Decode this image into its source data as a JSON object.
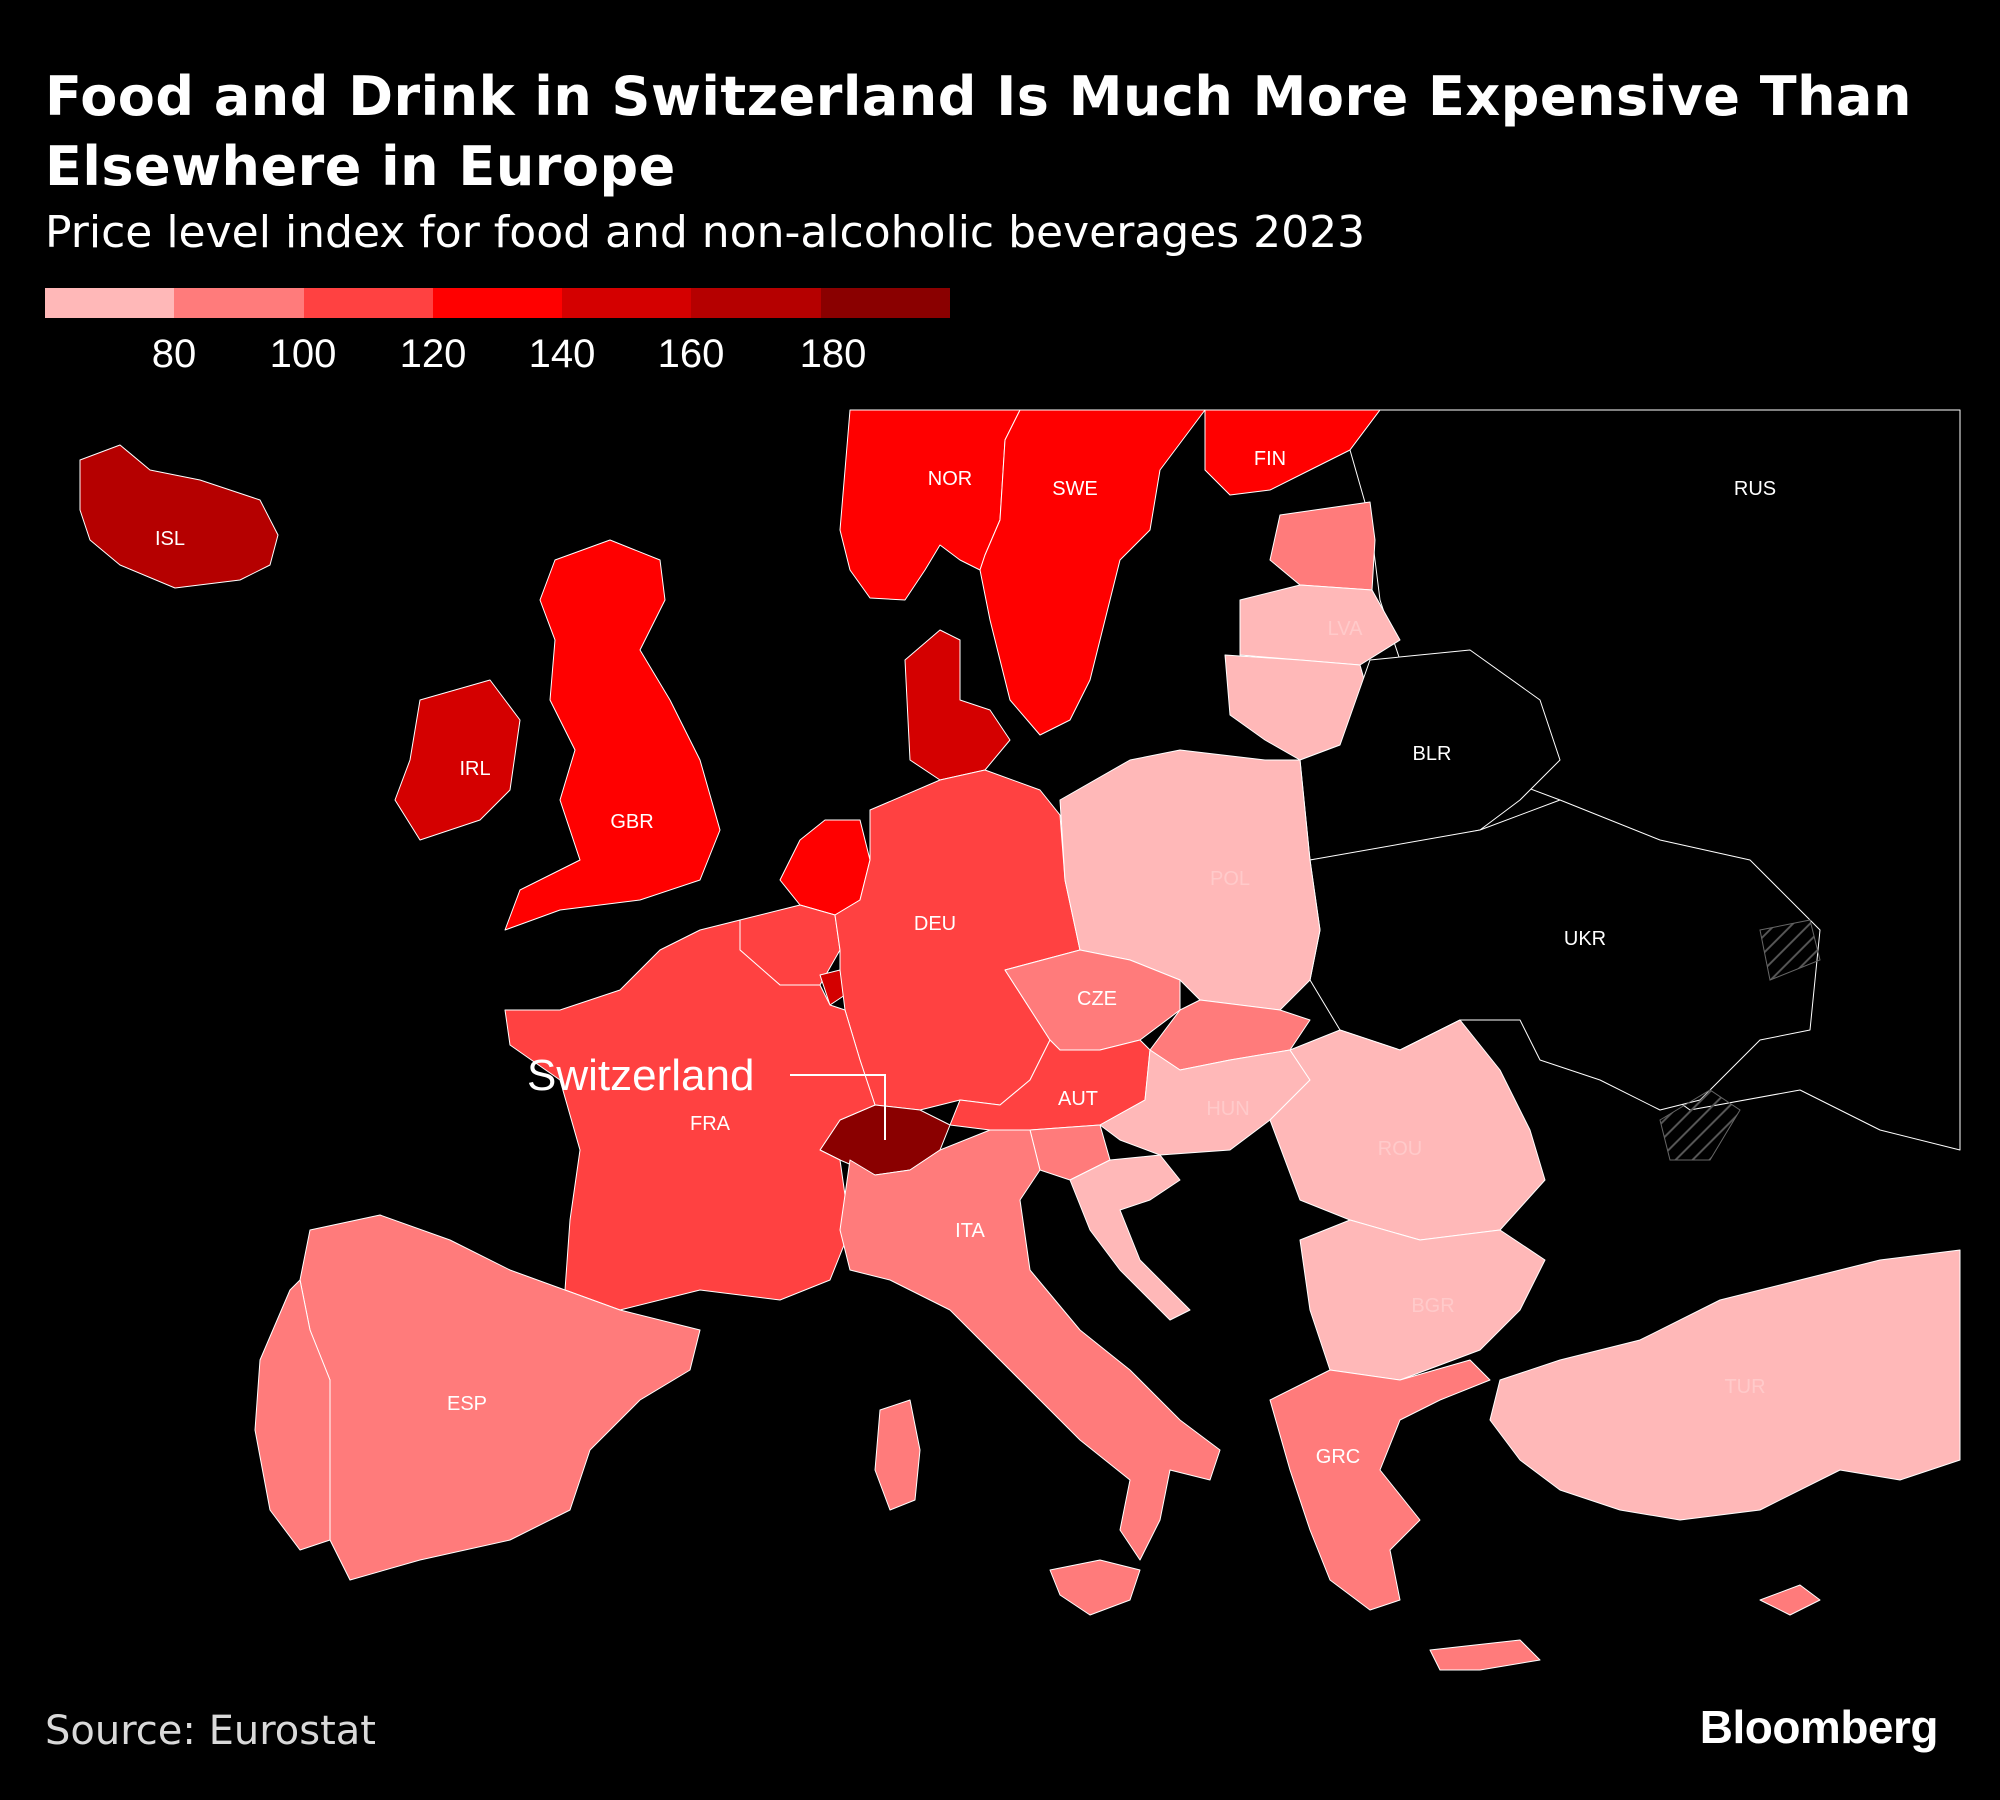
{
  "header": {
    "title": "Food and Drink in Switzerland Is Much More Expensive Than Elsewhere in Europe",
    "subtitle": "Price level index for food and non-alcoholic beverages 2023"
  },
  "legend": {
    "colors": [
      "#ffb8b8",
      "#ff7b7b",
      "#ff4141",
      "#ff0000",
      "#d40000",
      "#b50000",
      "#8a0000"
    ],
    "ticks": [
      "80",
      "100",
      "120",
      "140",
      "160",
      "180"
    ]
  },
  "annotation": {
    "label": "Switzerland"
  },
  "map": {
    "colors": {
      "no_data": "#000000",
      "border": "#ffffff"
    },
    "countries": [
      {
        "code": "ISL",
        "label": "ISL",
        "color": "#b50000"
      },
      {
        "code": "NOR",
        "label": "NOR",
        "color": "#ff0000"
      },
      {
        "code": "SWE",
        "label": "SWE",
        "color": "#ff0000"
      },
      {
        "code": "FIN",
        "label": "FIN",
        "color": "#ff0000"
      },
      {
        "code": "RUS",
        "label": "RUS",
        "color": "#000000"
      },
      {
        "code": "EST",
        "label": "",
        "color": "#ff7b7b"
      },
      {
        "code": "LVA",
        "label": "LVA",
        "color": "#ffb8b8"
      },
      {
        "code": "LTU",
        "label": "",
        "color": "#ffb8b8"
      },
      {
        "code": "BLR",
        "label": "BLR",
        "color": "#000000"
      },
      {
        "code": "IRL",
        "label": "IRL",
        "color": "#d40000"
      },
      {
        "code": "GBR",
        "label": "GBR",
        "color": "#ff0000"
      },
      {
        "code": "DNK",
        "label": "",
        "color": "#d40000"
      },
      {
        "code": "NLD",
        "label": "",
        "color": "#ff0000"
      },
      {
        "code": "BEL",
        "label": "",
        "color": "#ff4141"
      },
      {
        "code": "LUX",
        "label": "",
        "color": "#d40000"
      },
      {
        "code": "DEU",
        "label": "DEU",
        "color": "#ff4141"
      },
      {
        "code": "POL",
        "label": "POL",
        "color": "#ffb8b8"
      },
      {
        "code": "UKR",
        "label": "UKR",
        "color": "#000000"
      },
      {
        "code": "CZE",
        "label": "CZE",
        "color": "#ff7b7b"
      },
      {
        "code": "SVK",
        "label": "",
        "color": "#ff7b7b"
      },
      {
        "code": "AUT",
        "label": "AUT",
        "color": "#ff4141"
      },
      {
        "code": "CHE",
        "label": "",
        "color": "#8a0000"
      },
      {
        "code": "FRA",
        "label": "FRA",
        "color": "#ff4141"
      },
      {
        "code": "HUN",
        "label": "HUN",
        "color": "#ffb8b8"
      },
      {
        "code": "ROU",
        "label": "ROU",
        "color": "#ffb8b8"
      },
      {
        "code": "SVN",
        "label": "",
        "color": "#ff7b7b"
      },
      {
        "code": "HRV",
        "label": "",
        "color": "#ffb8b8"
      },
      {
        "code": "ITA",
        "label": "ITA",
        "color": "#ff7b7b"
      },
      {
        "code": "ESP",
        "label": "ESP",
        "color": "#ff7b7b"
      },
      {
        "code": "PRT",
        "label": "",
        "color": "#ff7b7b"
      },
      {
        "code": "BGR",
        "label": "BGR",
        "color": "#ffb8b8"
      },
      {
        "code": "GRC",
        "label": "GRC",
        "color": "#ff7b7b"
      },
      {
        "code": "TUR",
        "label": "TUR",
        "color": "#ffb8b8"
      },
      {
        "code": "CYP",
        "label": "",
        "color": "#ff7b7b"
      }
    ]
  },
  "footer": {
    "source": "Source: Eurostat",
    "brand": "Bloomberg"
  }
}
